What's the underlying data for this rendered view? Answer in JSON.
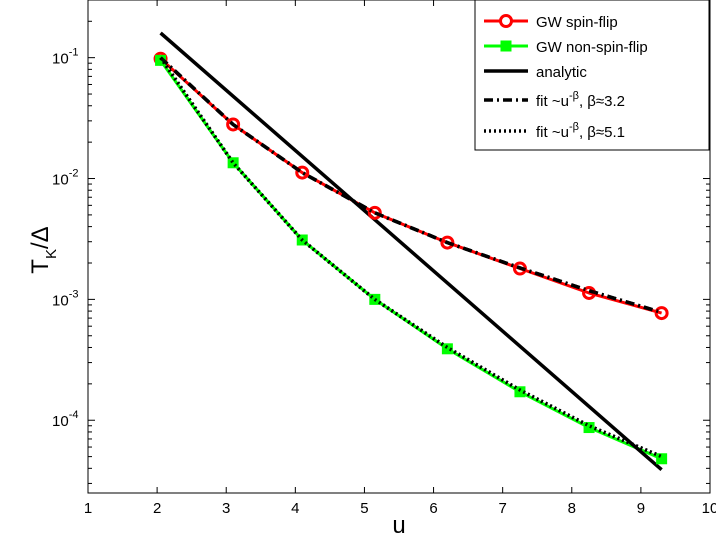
{
  "chart_data": {
    "type": "line",
    "title": "",
    "xlabel": "u",
    "ylabel": "T_K/Δ",
    "ylabel_main": "T",
    "ylabel_sub": "K",
    "ylabel_tail": "/Δ",
    "xlim": [
      1,
      10
    ],
    "ylim": [
      2.5e-05,
      0.3
    ],
    "yscale": "log",
    "grid": false,
    "legend_position": "top-right",
    "x_ticks": [
      1,
      2,
      3,
      4,
      5,
      6,
      7,
      8,
      9,
      10
    ],
    "x_tick_labels": [
      "1",
      "2",
      "3",
      "4",
      "5",
      "6",
      "7",
      "8",
      "9",
      "10"
    ],
    "y_ticks": [
      {
        "value": 0.1,
        "base": "10",
        "exp": "-1"
      },
      {
        "value": 0.01,
        "base": "10",
        "exp": "-2"
      },
      {
        "value": 0.001,
        "base": "10",
        "exp": "-3"
      },
      {
        "value": 0.0001,
        "base": "10",
        "exp": "-4"
      }
    ],
    "series": [
      {
        "name": "GW spin-flip",
        "color": "#ff0000",
        "marker": "circle",
        "x": [
          2.05,
          3.1,
          4.1,
          5.15,
          6.2,
          7.25,
          8.25,
          9.3
        ],
        "y": [
          0.098,
          0.028,
          0.0112,
          0.0052,
          0.00295,
          0.0018,
          0.00113,
          0.00077
        ]
      },
      {
        "name": "GW non-spin-flip",
        "color": "#00ff00",
        "marker": "square",
        "x": [
          2.05,
          3.1,
          4.1,
          5.15,
          6.2,
          7.25,
          8.25,
          9.3
        ],
        "y": [
          0.095,
          0.0135,
          0.0031,
          0.001,
          0.00039,
          0.000172,
          8.7e-05,
          4.8e-05
        ]
      },
      {
        "name": "analytic",
        "color": "#000000",
        "style": "solid",
        "x": [
          2.05,
          9.3
        ],
        "y": [
          0.16,
          3.9e-05
        ]
      },
      {
        "name": "fit ~u^-β, β≈3.2",
        "name_prefix": "fit ~u",
        "name_exp": "-β",
        "name_suffix": ", β≈3.2",
        "color": "#000000",
        "style": "dashdot",
        "x": [
          2.05,
          3.1,
          4.1,
          5.15,
          6.2,
          7.25,
          8.25,
          9.3
        ],
        "y": [
          0.1,
          0.028,
          0.0112,
          0.0052,
          0.00295,
          0.00182,
          0.00118,
          0.00078
        ]
      },
      {
        "name": "fit ~u^-β, β≈5.1",
        "name_prefix": "fit ~u",
        "name_exp": "-β",
        "name_suffix": ", β≈5.1",
        "color": "#000000",
        "style": "dotted",
        "x": [
          2.05,
          3.1,
          4.1,
          5.15,
          6.2,
          7.25,
          8.25,
          9.3
        ],
        "y": [
          0.1,
          0.0135,
          0.0031,
          0.001,
          0.0004,
          0.000178,
          9e-05,
          5e-05
        ]
      }
    ]
  }
}
